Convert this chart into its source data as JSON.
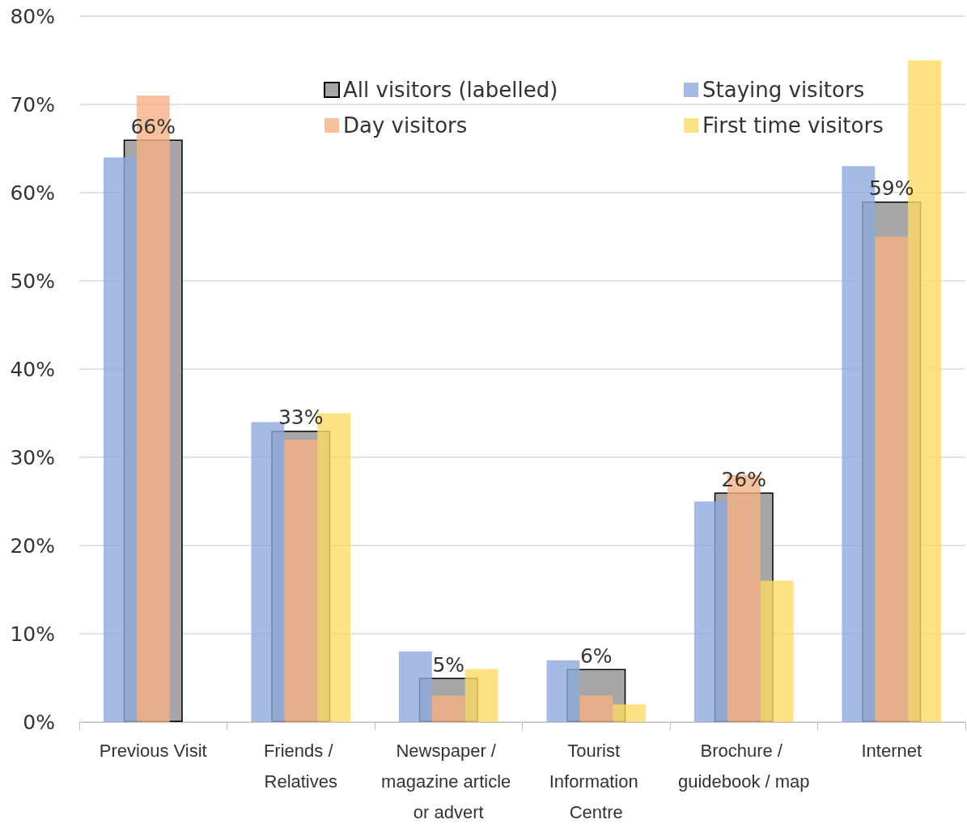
{
  "chart_data": {
    "type": "bar",
    "categories": [
      "Previous Visit",
      "Friends / Relatives",
      "Newspaper / magazine article or advert",
      "Tourist Information Centre",
      "Brochure / guidebook / map",
      "Internet"
    ],
    "series": [
      {
        "name": "All visitors (labelled)",
        "color": "#a6a6a6",
        "values": [
          66,
          33,
          5,
          6,
          26,
          59
        ],
        "value_labels": [
          "66%",
          "33%",
          "5%",
          "6%",
          "26%",
          "59%"
        ]
      },
      {
        "name": "Staying visitors",
        "color": "#8faadc",
        "values": [
          64,
          34,
          8,
          7,
          25,
          63
        ]
      },
      {
        "name": "Day visitors",
        "color": "#f4b183",
        "values": [
          71,
          32,
          3,
          3,
          28,
          55
        ]
      },
      {
        "name": "First time visitors",
        "color": "#ffd966",
        "values": [
          null,
          35,
          6,
          2,
          16,
          75
        ]
      }
    ],
    "ylim": [
      0,
      80
    ],
    "yticks": [
      {
        "value": 0,
        "label": "0%"
      },
      {
        "value": 10,
        "label": "10%"
      },
      {
        "value": 20,
        "label": "20%"
      },
      {
        "value": 30,
        "label": "30%"
      },
      {
        "value": 40,
        "label": "40%"
      },
      {
        "value": 50,
        "label": "50%"
      },
      {
        "value": 60,
        "label": "60%"
      },
      {
        "value": 70,
        "label": "70%"
      },
      {
        "value": 80,
        "label": "80%"
      }
    ],
    "grid": "y",
    "legend": "top right"
  }
}
